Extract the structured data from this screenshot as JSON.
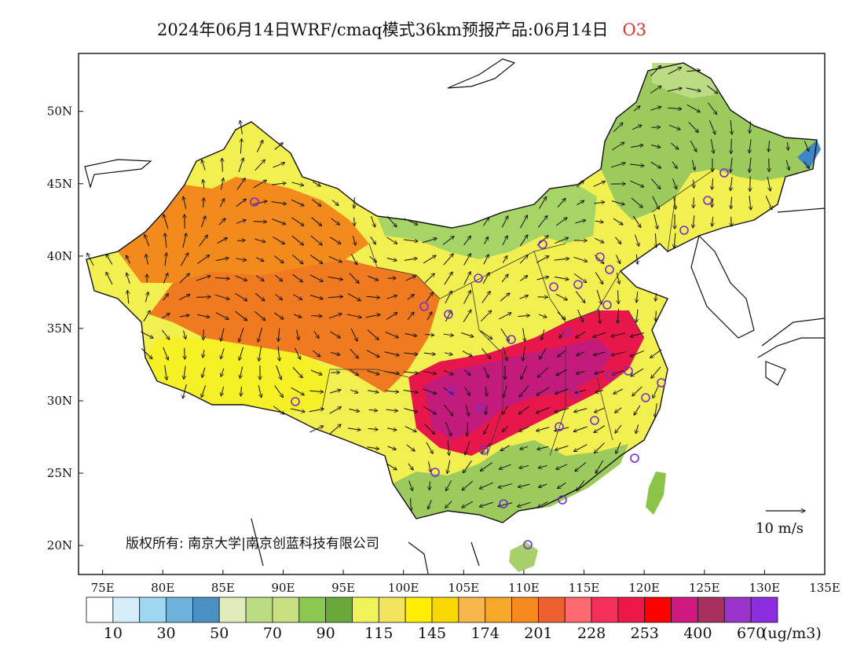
{
  "header": {
    "title": "2024年06月14日WRF/cmaq模式36km预报产品:06月14日",
    "species": "O3"
  },
  "map": {
    "lon_range": [
      73,
      135
    ],
    "lat_range": [
      18,
      54
    ],
    "lon_ticks": [
      "75E",
      "80E",
      "85E",
      "90E",
      "95E",
      "100E",
      "105E",
      "110E",
      "115E",
      "120E",
      "125E",
      "130E",
      "135E"
    ],
    "lat_ticks": [
      "50N",
      "45N",
      "40N",
      "35N",
      "30N",
      "25N",
      "20N"
    ],
    "copyright": "版权所有: 南京大学|南京创蓝科技有限公司",
    "wind_reference": "10 m/s",
    "region_colors": {
      "background": "#ffffff",
      "china_base": "#f2f050",
      "northeast": "#9cca5c",
      "heilongjiang_north": "#bcdc84",
      "northeast_tip": "#3f86c6",
      "inner_mongolia_green": "#a6d466",
      "xinjiang_orange": "#f38a1c",
      "tibet_yellow": "#f6f026",
      "tarim_orange": "#ef7a20",
      "sichuan_magenta": "#c21b7b",
      "central_red": "#e8174b",
      "south_green": "#9cca5c",
      "hainan_green": "#a8d06a",
      "taiwan_green": "#8cc44a"
    }
  },
  "legend": {
    "colors": [
      "#ffffff",
      "#d6eefa",
      "#9fd6f0",
      "#6eb2dc",
      "#4a90c4",
      "#e0ecbc",
      "#bcdc84",
      "#c8e080",
      "#8cc850",
      "#6aa83a",
      "#f0f45a",
      "#f2e45e",
      "#ffee00",
      "#f8d800",
      "#f6b84c",
      "#f6a828",
      "#f68a1c",
      "#ef6030",
      "#ff6a70",
      "#f53058",
      "#ee1848",
      "#ff0000",
      "#cf1880",
      "#a83060",
      "#9a33c8",
      "#8c2ee0"
    ],
    "labels": [
      "10",
      "30",
      "50",
      "70",
      "90",
      "115",
      "145",
      "174",
      "201",
      "228",
      "253",
      "400",
      "670"
    ],
    "unit": "(ug/m3)"
  }
}
